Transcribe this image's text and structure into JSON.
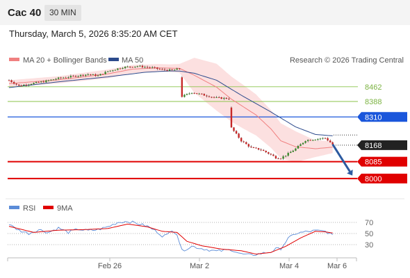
{
  "header": {
    "symbol": "Cac 40",
    "interval": "30 MIN",
    "timestamp": "Thursday, March 5, 2026 8:35:20 AM CET"
  },
  "colors": {
    "ma20": "#f08080",
    "ma50": "#2c4a8c",
    "bollinger_fill": "#fbd6d6",
    "support_green": "#8bc34a",
    "resistance_blue": "#1a56db",
    "support_red": "#e00000",
    "current": "#222222",
    "rsi": "#5b8cd8",
    "rsi_ma": "#e00000"
  },
  "chart_data": [
    {
      "type": "line",
      "title": "",
      "legend": [
        "MA 20 + Bollinger Bands",
        "MA 50"
      ],
      "credit": "Research © 2026 Trading Central",
      "x_tick_labels": [
        "Feb 26",
        "Mar 2",
        "Mar 4",
        "Mar 6"
      ],
      "ylim": [
        7940,
        8640
      ],
      "levels": [
        {
          "label": "8462",
          "value": 8462,
          "kind": "green"
        },
        {
          "label": "8388",
          "value": 8388,
          "kind": "green"
        },
        {
          "label": "8310",
          "value": 8310,
          "kind": "blue"
        },
        {
          "label": "8168",
          "value": 8168,
          "kind": "current"
        },
        {
          "label": "8085",
          "value": 8085,
          "kind": "red"
        },
        {
          "label": "8000",
          "value": 8000,
          "kind": "red"
        }
      ],
      "arrow": {
        "from_bar": 131,
        "from_value": 8172,
        "to_bar": 139,
        "to_value": 8015
      },
      "close_knots": [
        [
          0,
          8495
        ],
        [
          4,
          8467
        ],
        [
          8,
          8476
        ],
        [
          14,
          8488
        ],
        [
          20,
          8505
        ],
        [
          26,
          8515
        ],
        [
          32,
          8525
        ],
        [
          36,
          8518
        ],
        [
          40,
          8540
        ],
        [
          46,
          8560
        ],
        [
          52,
          8566
        ],
        [
          58,
          8558
        ],
        [
          62,
          8548
        ],
        [
          66,
          8545
        ],
        [
          69,
          8553
        ],
        [
          70,
          8413
        ],
        [
          74,
          8434
        ],
        [
          79,
          8420
        ],
        [
          84,
          8406
        ],
        [
          89,
          8403
        ],
        [
          90,
          8255
        ],
        [
          94,
          8190
        ],
        [
          98,
          8155
        ],
        [
          102,
          8145
        ],
        [
          106,
          8120
        ],
        [
          108,
          8105
        ],
        [
          110,
          8103
        ],
        [
          113,
          8125
        ],
        [
          116,
          8150
        ],
        [
          120,
          8192
        ],
        [
          125,
          8200
        ],
        [
          128,
          8204
        ],
        [
          131,
          8172
        ]
      ],
      "ma20_knots": [
        [
          0,
          8478
        ],
        [
          20,
          8497
        ],
        [
          40,
          8527
        ],
        [
          50,
          8551
        ],
        [
          60,
          8557
        ],
        [
          69,
          8555
        ],
        [
          75,
          8520
        ],
        [
          84,
          8460
        ],
        [
          90,
          8400
        ],
        [
          100,
          8320
        ],
        [
          106,
          8250
        ],
        [
          110,
          8190
        ],
        [
          116,
          8160
        ],
        [
          124,
          8150
        ],
        [
          131,
          8158
        ]
      ],
      "ma50_knots": [
        [
          0,
          8458
        ],
        [
          20,
          8487
        ],
        [
          40,
          8512
        ],
        [
          55,
          8535
        ],
        [
          65,
          8542
        ],
        [
          69,
          8541
        ],
        [
          75,
          8530
        ],
        [
          84,
          8495
        ],
        [
          95,
          8412
        ],
        [
          106,
          8335
        ],
        [
          116,
          8260
        ],
        [
          124,
          8222
        ],
        [
          131,
          8215
        ]
      ],
      "band_width_knots": [
        [
          0,
          17
        ],
        [
          20,
          18
        ],
        [
          40,
          22
        ],
        [
          55,
          20
        ],
        [
          65,
          19
        ],
        [
          69,
          22
        ],
        [
          75,
          88
        ],
        [
          84,
          118
        ],
        [
          95,
          110
        ],
        [
          106,
          95
        ],
        [
          116,
          78
        ],
        [
          124,
          42
        ],
        [
          131,
          30
        ]
      ]
    },
    {
      "type": "line",
      "title": "",
      "legend": [
        "RSI",
        "9MA"
      ],
      "ylim": [
        10,
        90
      ],
      "y_ticks": [
        70,
        50,
        30
      ],
      "rsi_knots": [
        [
          0,
          66
        ],
        [
          4,
          56
        ],
        [
          8,
          50
        ],
        [
          12,
          57
        ],
        [
          16,
          52
        ],
        [
          20,
          60
        ],
        [
          24,
          52
        ],
        [
          28,
          58
        ],
        [
          32,
          55
        ],
        [
          36,
          57
        ],
        [
          40,
          62
        ],
        [
          44,
          70
        ],
        [
          48,
          72
        ],
        [
          52,
          68
        ],
        [
          56,
          63
        ],
        [
          60,
          53
        ],
        [
          62,
          46
        ],
        [
          64,
          47
        ],
        [
          66,
          57
        ],
        [
          68,
          49
        ],
        [
          70,
          19
        ],
        [
          74,
          27
        ],
        [
          78,
          23
        ],
        [
          84,
          18
        ],
        [
          90,
          21
        ],
        [
          94,
          13
        ],
        [
          98,
          11
        ],
        [
          102,
          14
        ],
        [
          106,
          17
        ],
        [
          108,
          22
        ],
        [
          110,
          23
        ],
        [
          113,
          41
        ],
        [
          116,
          50
        ],
        [
          120,
          53
        ],
        [
          124,
          55
        ],
        [
          128,
          54
        ],
        [
          131,
          48
        ]
      ],
      "rsi_ma_knots": [
        [
          0,
          63
        ],
        [
          10,
          52
        ],
        [
          20,
          56
        ],
        [
          30,
          57
        ],
        [
          40,
          59
        ],
        [
          48,
          67
        ],
        [
          56,
          62
        ],
        [
          62,
          54
        ],
        [
          68,
          52
        ],
        [
          72,
          36
        ],
        [
          78,
          28
        ],
        [
          86,
          22
        ],
        [
          94,
          19
        ],
        [
          100,
          13
        ],
        [
          106,
          16
        ],
        [
          112,
          27
        ],
        [
          118,
          42
        ],
        [
          124,
          54
        ],
        [
          128,
          53
        ],
        [
          131,
          51
        ]
      ]
    }
  ]
}
